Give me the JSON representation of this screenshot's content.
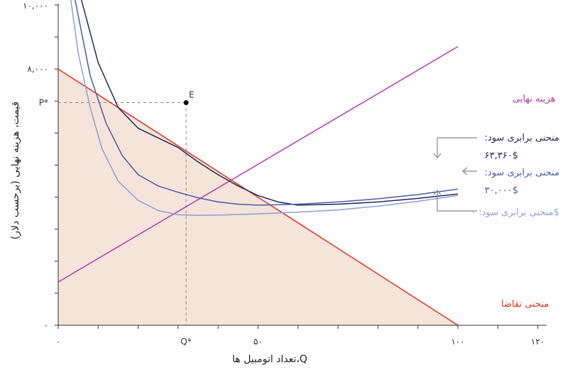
{
  "chart_data": {
    "type": "line",
    "xlabel": "Q،تعداد اتومبیل ها",
    "ylabel": "قیمت، هزینه نهایی (برحسب دلار)",
    "xlim": [
      0,
      120
    ],
    "ylim": [
      0,
      10000
    ],
    "x_tick_labels": [
      {
        "value": 0,
        "label": "۰"
      },
      {
        "value": 50,
        "label": "۵۰"
      },
      {
        "value": 100,
        "label": "۱۰۰"
      },
      {
        "value": 120,
        "label": "۱۲۰"
      }
    ],
    "y_tick_labels": [
      {
        "value": 0,
        "label": "۰"
      },
      {
        "value": 8000,
        "label": "۸,۰۰۰"
      },
      {
        "value": 10000,
        "label": "۱۰,۰۰۰"
      }
    ],
    "demand": {
      "name": "منحنی تقاضا",
      "color": "#e2361f",
      "fill": "#f4e4d9",
      "points": [
        [
          0,
          8000
        ],
        [
          100,
          0
        ]
      ]
    },
    "marginal_cost": {
      "name": "هزینه نهایی",
      "color": "#b43cae",
      "points": [
        [
          0,
          1350
        ],
        [
          100,
          8700
        ]
      ]
    },
    "isoprofit": [
      {
        "name_line1": ":منحنی برابری سود",
        "name_line2": "۶۳,۳۶۰$",
        "profit": 63360,
        "color": "#1f2a5c",
        "points": [
          [
            5.5,
            10300
          ],
          [
            10,
            8200
          ],
          [
            15,
            6800
          ],
          [
            20,
            6150
          ],
          [
            25,
            5850
          ],
          [
            30,
            5550
          ],
          [
            35,
            5100
          ],
          [
            40,
            4700
          ],
          [
            45,
            4350
          ],
          [
            50,
            4050
          ],
          [
            55,
            3850
          ],
          [
            60,
            3750
          ],
          [
            70,
            3780
          ],
          [
            80,
            3850
          ],
          [
            90,
            3960
          ],
          [
            100,
            4100
          ]
        ]
      },
      {
        "name_line1": ":منحنی برابری سود",
        "name_line2": "۳۰,۰۰۰$",
        "profit": 30000,
        "color": "#4a5da8",
        "points": [
          [
            4,
            10300
          ],
          [
            8,
            7800
          ],
          [
            12,
            6300
          ],
          [
            16,
            5300
          ],
          [
            20,
            4700
          ],
          [
            25,
            4350
          ],
          [
            30,
            4150
          ],
          [
            35,
            3980
          ],
          [
            40,
            3850
          ],
          [
            45,
            3780
          ],
          [
            50,
            3750
          ],
          [
            60,
            3780
          ],
          [
            70,
            3850
          ],
          [
            80,
            3950
          ],
          [
            90,
            4080
          ],
          [
            100,
            4250
          ]
        ]
      },
      {
        "name_line1": "منحنی برابری سود: ۰$",
        "name_line2": "",
        "profit": 0,
        "color": "#8da0d8",
        "points": [
          [
            3,
            10300
          ],
          [
            5,
            8500
          ],
          [
            8,
            6800
          ],
          [
            11,
            5500
          ],
          [
            15,
            4500
          ],
          [
            20,
            3900
          ],
          [
            25,
            3580
          ],
          [
            30,
            3450
          ],
          [
            35,
            3430
          ],
          [
            40,
            3440
          ],
          [
            50,
            3480
          ],
          [
            60,
            3530
          ],
          [
            70,
            3600
          ],
          [
            80,
            3720
          ],
          [
            90,
            3870
          ],
          [
            100,
            4050
          ]
        ]
      }
    ],
    "equilibrium": {
      "label": "E",
      "q_label": "Q*",
      "p_label": "P*",
      "x": 32,
      "y": 6950
    }
  }
}
